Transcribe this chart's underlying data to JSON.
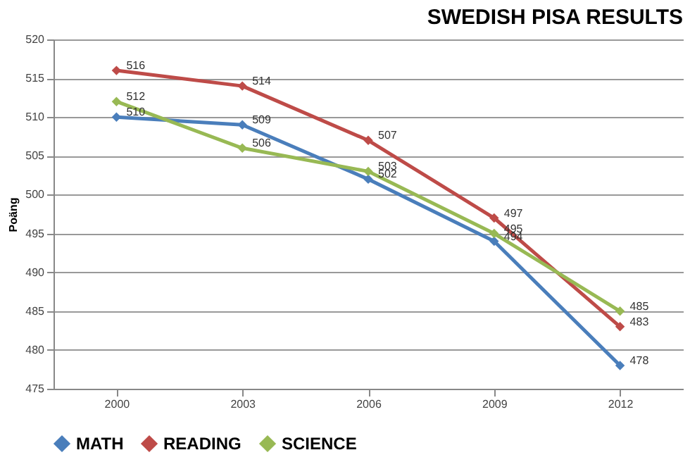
{
  "chart_data": {
    "type": "line",
    "title": "SWEDISH PISA RESULTS",
    "ylabel": "Poäng",
    "categories": [
      "2000",
      "2003",
      "2006",
      "2009",
      "2012"
    ],
    "series": [
      {
        "name": "MATH",
        "color": "#4a7ebb",
        "values": [
          510,
          509,
          502,
          494,
          478
        ]
      },
      {
        "name": "READING",
        "color": "#be4b48",
        "values": [
          516,
          514,
          507,
          497,
          483
        ]
      },
      {
        "name": "SCIENCE",
        "color": "#98b954",
        "values": [
          512,
          506,
          503,
          495,
          485
        ]
      }
    ],
    "ylim": [
      475,
      520
    ],
    "yticks": [
      475,
      480,
      485,
      490,
      495,
      500,
      505,
      510,
      515,
      520
    ],
    "grid": "y",
    "legend": "bottom",
    "marker": "diamond",
    "line_style": "solid",
    "data_labels": true
  }
}
